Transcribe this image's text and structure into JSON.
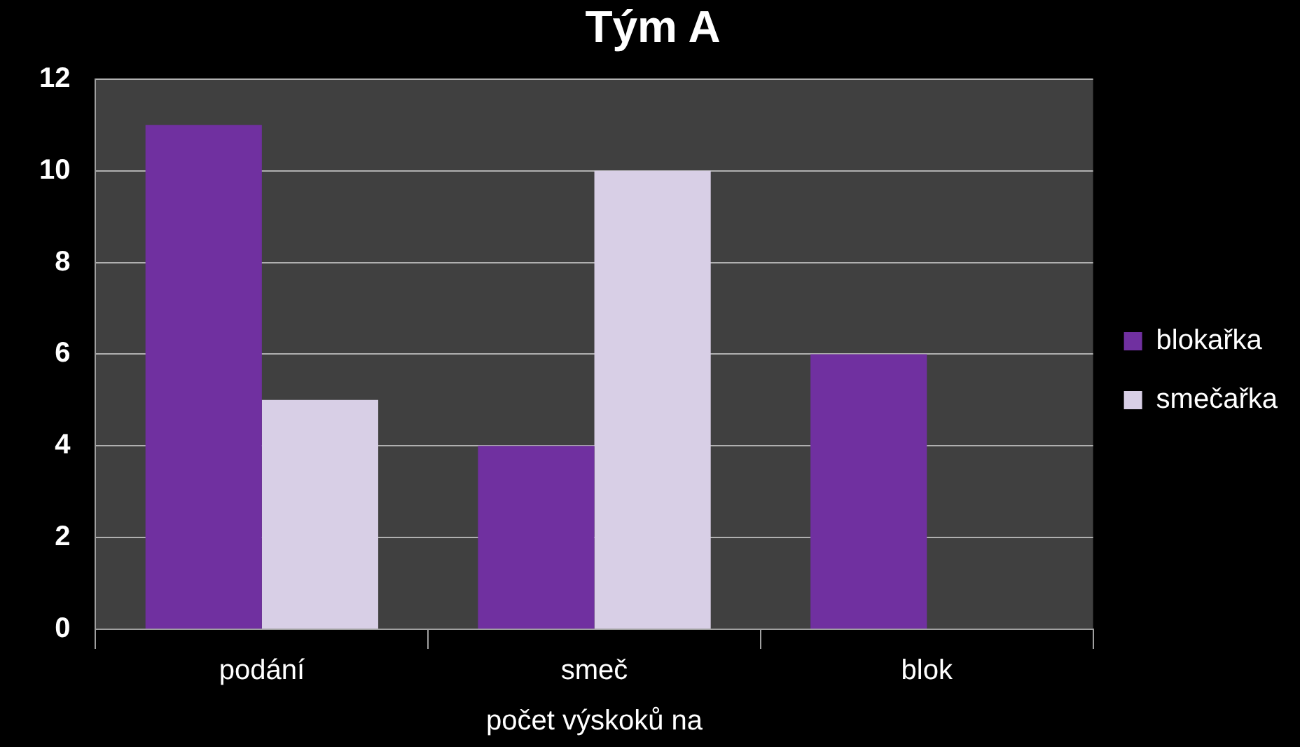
{
  "chart_data": {
    "type": "bar",
    "title": "Tým A",
    "xlabel": "počet výskoků na",
    "categories": [
      "podání",
      "smeč",
      "blok"
    ],
    "series": [
      {
        "name": "blokařka",
        "color": "#7030a0",
        "values": [
          11,
          4,
          6
        ]
      },
      {
        "name": "smečařka",
        "color": "#d8cfe6",
        "values": [
          5,
          10,
          null
        ]
      }
    ],
    "ylim": [
      0,
      12
    ],
    "yticks": [
      0,
      2,
      4,
      6,
      8,
      10,
      12
    ],
    "grid": "y",
    "legend": "right"
  }
}
